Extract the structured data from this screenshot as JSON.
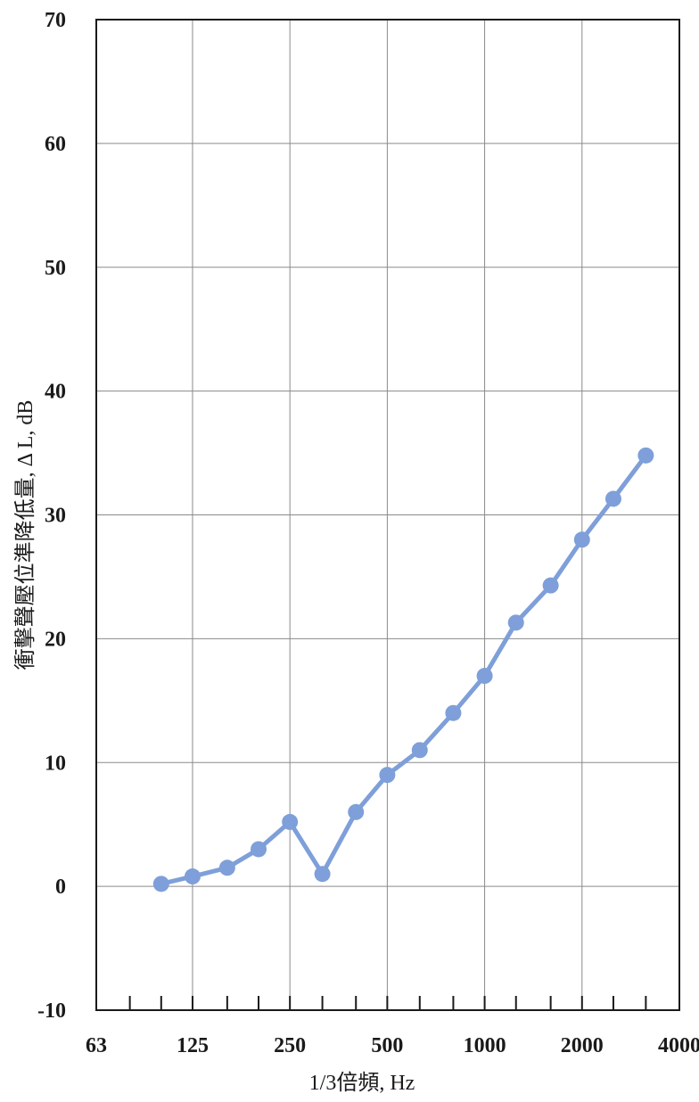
{
  "chart_data": {
    "type": "line",
    "title": "",
    "xlabel": "1/3倍頻, Hz",
    "ylabel": "衝擊聲壓位準降低量, Δ L, dB",
    "x_scale": "log",
    "xlim": [
      63,
      4000
    ],
    "ylim": [
      -10,
      70
    ],
    "x_tick_labels": [
      "63",
      "125",
      "250",
      "500",
      "1000",
      "2000",
      "4000"
    ],
    "x_tick_values": [
      63,
      125,
      250,
      500,
      1000,
      2000,
      4000
    ],
    "y_tick_values": [
      -10,
      0,
      10,
      20,
      30,
      40,
      50,
      60,
      70
    ],
    "y_tick_labels": [
      "-10",
      "0",
      "10",
      "20",
      "30",
      "40",
      "50",
      "60",
      "70"
    ],
    "grid": true,
    "series": [
      {
        "color": "#7e9fd9",
        "x": [
          100,
          125,
          160,
          200,
          250,
          315,
          400,
          500,
          630,
          800,
          1000,
          1250,
          1600,
          2000,
          2500,
          3150
        ],
        "y": [
          0.2,
          0.8,
          1.5,
          3.0,
          5.2,
          1.0,
          6.0,
          9.0,
          11.0,
          14.0,
          17.0,
          21.3,
          24.3,
          28.0,
          31.3,
          34.8
        ]
      }
    ]
  }
}
